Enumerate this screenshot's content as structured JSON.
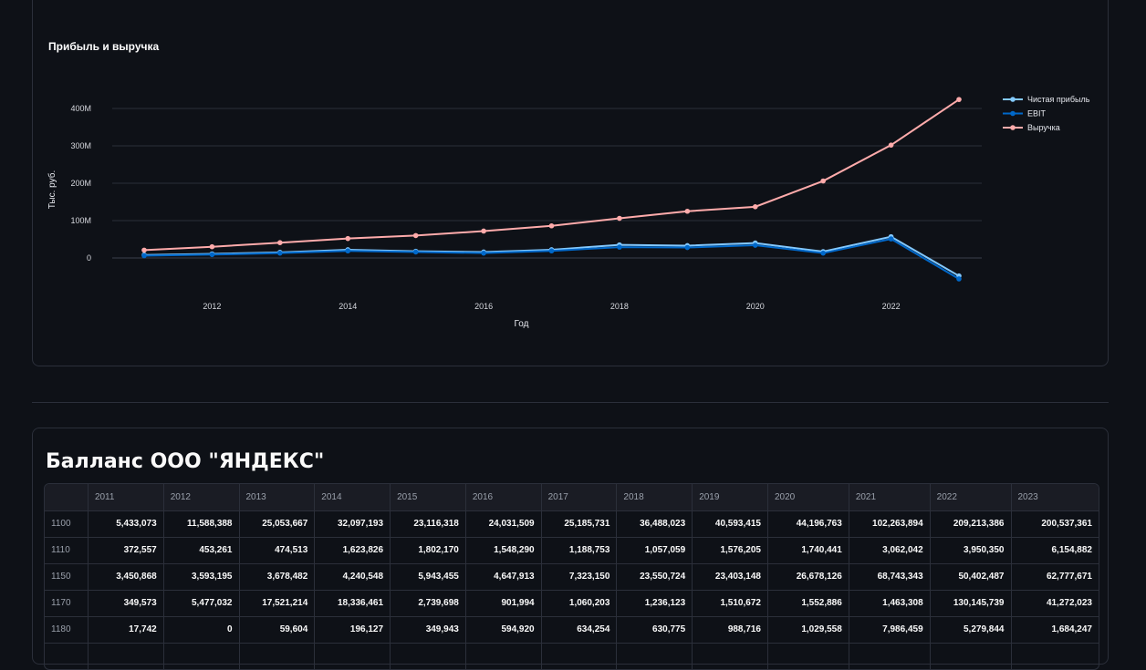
{
  "chart_data": {
    "type": "line",
    "title": "Прибыль и выручка",
    "xlabel": "Год",
    "ylabel": "Тыс. руб.",
    "x": [
      2011,
      2012,
      2013,
      2014,
      2015,
      2016,
      2017,
      2018,
      2019,
      2020,
      2021,
      2022,
      2023
    ],
    "xticks": [
      "2012",
      "2014",
      "2016",
      "2018",
      "2020",
      "2022"
    ],
    "yticks": [
      "0",
      "100M",
      "200M",
      "300M",
      "400M"
    ],
    "ylim": [
      -60000000,
      440000000
    ],
    "grid": true,
    "legend_position": "top-right",
    "series": [
      {
        "name": "Чистая прибыль",
        "color": "#83c9ff",
        "values": [
          8000000,
          11000000,
          15000000,
          22000000,
          18000000,
          16000000,
          22000000,
          35000000,
          33000000,
          40000000,
          17000000,
          57000000,
          -48000000
        ]
      },
      {
        "name": "EBIT",
        "color": "#0068c9",
        "values": [
          6000000,
          9000000,
          13000000,
          19000000,
          16000000,
          13000000,
          19000000,
          29000000,
          28000000,
          34000000,
          13000000,
          51000000,
          -56000000
        ]
      },
      {
        "name": "Выручка",
        "color": "#ffabab",
        "values": [
          21000000,
          30000000,
          41000000,
          52000000,
          60000000,
          72000000,
          86000000,
          106000000,
          125000000,
          137000000,
          206000000,
          302000000,
          424000000
        ]
      }
    ]
  },
  "table": {
    "title": "Балланс ООО \"ЯНДЕКС\"",
    "columns": [
      "",
      "2011",
      "2012",
      "2013",
      "2014",
      "2015",
      "2016",
      "2017",
      "2018",
      "2019",
      "2020",
      "2021",
      "2022",
      "2023"
    ],
    "rows": [
      [
        "1100",
        "5,433,073",
        "11,588,388",
        "25,053,667",
        "32,097,193",
        "23,116,318",
        "24,031,509",
        "25,185,731",
        "36,488,023",
        "40,593,415",
        "44,196,763",
        "102,263,894",
        "209,213,386",
        "200,537,361"
      ],
      [
        "1110",
        "372,557",
        "453,261",
        "474,513",
        "1,623,826",
        "1,802,170",
        "1,548,290",
        "1,188,753",
        "1,057,059",
        "1,576,205",
        "1,740,441",
        "3,062,042",
        "3,950,350",
        "6,154,882"
      ],
      [
        "1150",
        "3,450,868",
        "3,593,195",
        "3,678,482",
        "4,240,548",
        "5,943,455",
        "4,647,913",
        "7,323,150",
        "23,550,724",
        "23,403,148",
        "26,678,126",
        "68,743,343",
        "50,402,487",
        "62,777,671"
      ],
      [
        "1170",
        "349,573",
        "5,477,032",
        "17,521,214",
        "18,336,461",
        "2,739,698",
        "901,994",
        "1,060,203",
        "1,236,123",
        "1,510,672",
        "1,552,886",
        "1,463,308",
        "130,145,739",
        "41,272,023"
      ],
      [
        "1180",
        "17,742",
        "0",
        "59,604",
        "196,127",
        "349,943",
        "594,920",
        "634,254",
        "630,775",
        "988,716",
        "1,029,558",
        "7,986,459",
        "5,279,844",
        "1,684,247"
      ],
      [
        "",
        "",
        "",
        "",
        "",
        "",
        "",
        "",
        "",
        "",
        "",
        "",
        "",
        ""
      ]
    ]
  }
}
